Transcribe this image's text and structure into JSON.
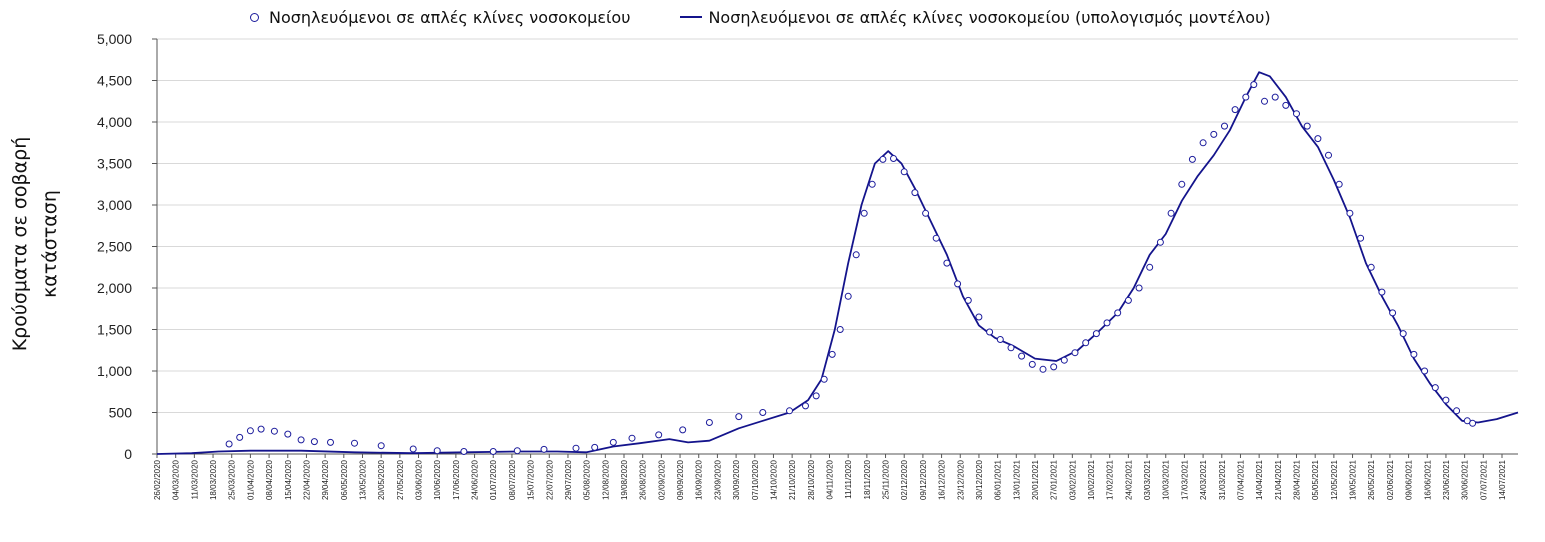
{
  "chart_data": {
    "type": "scatter",
    "title": "",
    "xlabel": "",
    "ylabel": "Κρούσματα σε σοβαρή κατάσταση",
    "ylim": [
      0,
      5000
    ],
    "y_ticks": [
      "0",
      "500",
      "1,000",
      "1,500",
      "2,000",
      "2,500",
      "3,000",
      "3,500",
      "4,000",
      "4,500",
      "5,000"
    ],
    "x_range": [
      "2020-02-26",
      "2021-07-20"
    ],
    "x_tick_labels": [
      "26/02/2020",
      "04/03/2020",
      "11/03/2020",
      "18/03/2020",
      "25/03/2020",
      "01/04/2020",
      "08/04/2020",
      "15/04/2020",
      "22/04/2020",
      "29/04/2020",
      "06/05/2020",
      "13/05/2020",
      "20/05/2020",
      "27/05/2020",
      "03/06/2020",
      "10/06/2020",
      "17/06/2020",
      "24/06/2020",
      "01/07/2020",
      "08/07/2020",
      "15/07/2020",
      "22/07/2020",
      "29/07/2020",
      "05/08/2020",
      "12/08/2020",
      "19/08/2020",
      "26/08/2020",
      "02/09/2020",
      "09/09/2020",
      "16/09/2020",
      "23/09/2020",
      "30/09/2020",
      "07/10/2020",
      "14/10/2020",
      "21/10/2020",
      "28/10/2020",
      "04/11/2020",
      "11/11/2020",
      "18/11/2020",
      "25/11/2020",
      "02/12/2020",
      "09/12/2020",
      "16/12/2020",
      "23/12/2020",
      "30/12/2020",
      "06/01/2021",
      "13/01/2021",
      "20/01/2021",
      "27/01/2021",
      "03/02/2021",
      "10/02/2021",
      "17/02/2021",
      "24/02/2021",
      "03/03/2021",
      "10/03/2021",
      "17/03/2021",
      "24/03/2021",
      "31/03/2021",
      "07/04/2021",
      "14/04/2021",
      "21/04/2021",
      "28/04/2021",
      "05/05/2021",
      "12/05/2021",
      "19/05/2021",
      "26/05/2021",
      "02/06/2021",
      "09/06/2021",
      "16/06/2021",
      "23/06/2021",
      "30/06/2021",
      "07/07/2021",
      "14/07/2021"
    ],
    "legend_position": "top",
    "grid": "horizontal",
    "series": [
      {
        "name": "Νοσηλευόμενοι σε απλές κλίνες νοσοκομείου",
        "marker": "circle",
        "color": "#1c1c9c",
        "points": [
          [
            "2020-03-24",
            120
          ],
          [
            "2020-03-28",
            200
          ],
          [
            "2020-04-01",
            280
          ],
          [
            "2020-04-05",
            300
          ],
          [
            "2020-04-10",
            275
          ],
          [
            "2020-04-15",
            240
          ],
          [
            "2020-04-20",
            170
          ],
          [
            "2020-04-25",
            150
          ],
          [
            "2020-05-01",
            140
          ],
          [
            "2020-05-10",
            130
          ],
          [
            "2020-05-20",
            100
          ],
          [
            "2020-06-01",
            60
          ],
          [
            "2020-06-10",
            40
          ],
          [
            "2020-06-20",
            30
          ],
          [
            "2020-07-01",
            30
          ],
          [
            "2020-07-10",
            40
          ],
          [
            "2020-07-20",
            55
          ],
          [
            "2020-08-01",
            70
          ],
          [
            "2020-08-08",
            80
          ],
          [
            "2020-08-15",
            140
          ],
          [
            "2020-08-22",
            190
          ],
          [
            "2020-09-01",
            230
          ],
          [
            "2020-09-10",
            290
          ],
          [
            "2020-09-20",
            380
          ],
          [
            "2020-10-01",
            450
          ],
          [
            "2020-10-10",
            500
          ],
          [
            "2020-10-20",
            520
          ],
          [
            "2020-10-26",
            580
          ],
          [
            "2020-10-30",
            700
          ],
          [
            "2020-11-02",
            900
          ],
          [
            "2020-11-05",
            1200
          ],
          [
            "2020-11-08",
            1500
          ],
          [
            "2020-11-11",
            1900
          ],
          [
            "2020-11-14",
            2400
          ],
          [
            "2020-11-17",
            2900
          ],
          [
            "2020-11-20",
            3250
          ],
          [
            "2020-11-24",
            3550
          ],
          [
            "2020-11-28",
            3560
          ],
          [
            "2020-12-02",
            3400
          ],
          [
            "2020-12-06",
            3150
          ],
          [
            "2020-12-10",
            2900
          ],
          [
            "2020-12-14",
            2600
          ],
          [
            "2020-12-18",
            2300
          ],
          [
            "2020-12-22",
            2050
          ],
          [
            "2020-12-26",
            1850
          ],
          [
            "2020-12-30",
            1650
          ],
          [
            "2021-01-03",
            1470
          ],
          [
            "2021-01-07",
            1380
          ],
          [
            "2021-01-11",
            1280
          ],
          [
            "2021-01-15",
            1180
          ],
          [
            "2021-01-19",
            1080
          ],
          [
            "2021-01-23",
            1020
          ],
          [
            "2021-01-27",
            1050
          ],
          [
            "2021-01-31",
            1130
          ],
          [
            "2021-02-04",
            1220
          ],
          [
            "2021-02-08",
            1340
          ],
          [
            "2021-02-12",
            1450
          ],
          [
            "2021-02-16",
            1580
          ],
          [
            "2021-02-20",
            1700
          ],
          [
            "2021-02-24",
            1850
          ],
          [
            "2021-02-28",
            2000
          ],
          [
            "2021-03-04",
            2250
          ],
          [
            "2021-03-08",
            2550
          ],
          [
            "2021-03-12",
            2900
          ],
          [
            "2021-03-16",
            3250
          ],
          [
            "2021-03-20",
            3550
          ],
          [
            "2021-03-24",
            3750
          ],
          [
            "2021-03-28",
            3850
          ],
          [
            "2021-04-01",
            3950
          ],
          [
            "2021-04-05",
            4150
          ],
          [
            "2021-04-09",
            4300
          ],
          [
            "2021-04-12",
            4450
          ],
          [
            "2021-04-16",
            4250
          ],
          [
            "2021-04-20",
            4300
          ],
          [
            "2021-04-24",
            4200
          ],
          [
            "2021-04-28",
            4100
          ],
          [
            "2021-05-02",
            3950
          ],
          [
            "2021-05-06",
            3800
          ],
          [
            "2021-05-10",
            3600
          ],
          [
            "2021-05-14",
            3250
          ],
          [
            "2021-05-18",
            2900
          ],
          [
            "2021-05-22",
            2600
          ],
          [
            "2021-05-26",
            2250
          ],
          [
            "2021-05-30",
            1950
          ],
          [
            "2021-06-03",
            1700
          ],
          [
            "2021-06-07",
            1450
          ],
          [
            "2021-06-11",
            1200
          ],
          [
            "2021-06-15",
            1000
          ],
          [
            "2021-06-19",
            800
          ],
          [
            "2021-06-23",
            650
          ],
          [
            "2021-06-27",
            520
          ],
          [
            "2021-07-01",
            400
          ],
          [
            "2021-07-03",
            370
          ]
        ]
      },
      {
        "name": "Νοσηλευόμενοι σε απλές κλίνες νοσοκομείου (υπολογισμός μοντέλου)",
        "marker": "line",
        "color": "#14148c",
        "points": [
          [
            "2020-02-26",
            0
          ],
          [
            "2020-03-10",
            10
          ],
          [
            "2020-03-20",
            30
          ],
          [
            "2020-04-01",
            40
          ],
          [
            "2020-04-20",
            40
          ],
          [
            "2020-05-10",
            20
          ],
          [
            "2020-06-01",
            10
          ],
          [
            "2020-06-20",
            20
          ],
          [
            "2020-07-10",
            30
          ],
          [
            "2020-07-25",
            30
          ],
          [
            "2020-08-05",
            20
          ],
          [
            "2020-08-15",
            90
          ],
          [
            "2020-08-25",
            130
          ],
          [
            "2020-09-05",
            180
          ],
          [
            "2020-09-12",
            140
          ],
          [
            "2020-09-20",
            160
          ],
          [
            "2020-10-01",
            310
          ],
          [
            "2020-10-10",
            400
          ],
          [
            "2020-10-20",
            500
          ],
          [
            "2020-10-27",
            650
          ],
          [
            "2020-11-01",
            900
          ],
          [
            "2020-11-06",
            1500
          ],
          [
            "2020-11-11",
            2300
          ],
          [
            "2020-11-16",
            3000
          ],
          [
            "2020-11-21",
            3500
          ],
          [
            "2020-11-26",
            3650
          ],
          [
            "2020-12-01",
            3500
          ],
          [
            "2020-12-06",
            3200
          ],
          [
            "2020-12-12",
            2800
          ],
          [
            "2020-12-18",
            2400
          ],
          [
            "2020-12-24",
            1900
          ],
          [
            "2020-12-30",
            1550
          ],
          [
            "2021-01-05",
            1400
          ],
          [
            "2021-01-12",
            1300
          ],
          [
            "2021-01-20",
            1150
          ],
          [
            "2021-01-28",
            1120
          ],
          [
            "2021-02-05",
            1250
          ],
          [
            "2021-02-12",
            1450
          ],
          [
            "2021-02-20",
            1700
          ],
          [
            "2021-02-26",
            2000
          ],
          [
            "2021-03-04",
            2400
          ],
          [
            "2021-03-10",
            2650
          ],
          [
            "2021-03-16",
            3050
          ],
          [
            "2021-03-22",
            3350
          ],
          [
            "2021-03-28",
            3600
          ],
          [
            "2021-04-03",
            3900
          ],
          [
            "2021-04-09",
            4300
          ],
          [
            "2021-04-14",
            4600
          ],
          [
            "2021-04-18",
            4550
          ],
          [
            "2021-04-24",
            4300
          ],
          [
            "2021-04-30",
            3950
          ],
          [
            "2021-05-06",
            3700
          ],
          [
            "2021-05-12",
            3300
          ],
          [
            "2021-05-18",
            2850
          ],
          [
            "2021-05-24",
            2300
          ],
          [
            "2021-05-30",
            1900
          ],
          [
            "2021-06-05",
            1550
          ],
          [
            "2021-06-11",
            1150
          ],
          [
            "2021-06-17",
            850
          ],
          [
            "2021-06-23",
            600
          ],
          [
            "2021-06-29",
            400
          ],
          [
            "2021-07-05",
            380
          ],
          [
            "2021-07-12",
            420
          ],
          [
            "2021-07-20",
            500
          ]
        ]
      }
    ]
  }
}
